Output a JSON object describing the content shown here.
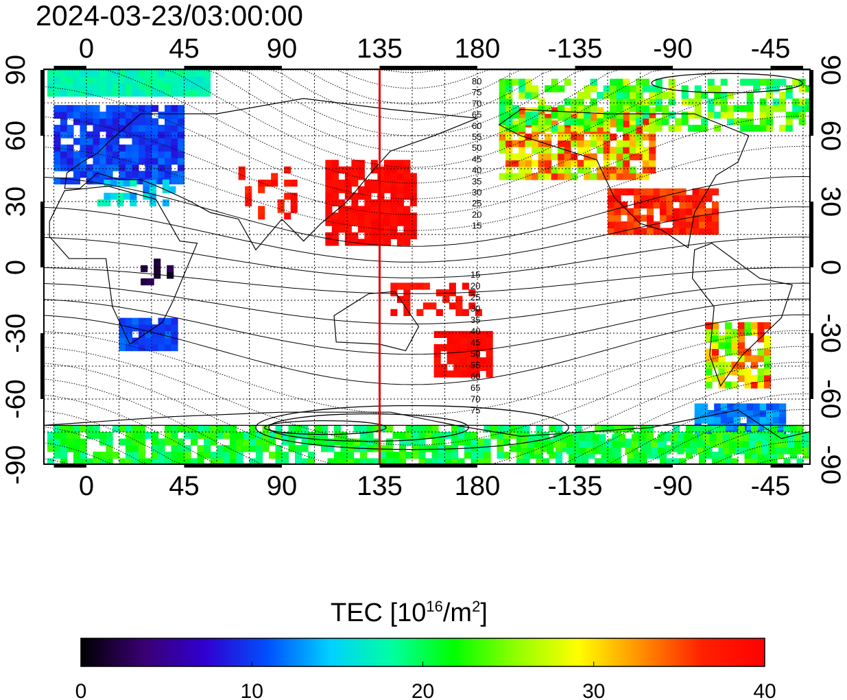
{
  "title": "2024-03-23/03:00:00",
  "x_tick_labels": [
    "0",
    "45",
    "90",
    "135",
    "180",
    "-135",
    "-90",
    "-45"
  ],
  "y_tick_labels_left": [
    "90",
    "60",
    "30",
    "0",
    "-30",
    "-60",
    "-90"
  ],
  "y_tick_labels_right": [
    "90",
    "60",
    "30",
    "0",
    "-30",
    "-60",
    "-90"
  ],
  "contour_labels_north": [
    "80",
    "75",
    "70",
    "65",
    "60",
    "55",
    "50",
    "45",
    "40",
    "35",
    "30",
    "25",
    "20",
    "15"
  ],
  "contour_labels_south": [
    "15",
    "20",
    "25",
    "30",
    "35",
    "40",
    "45",
    "50",
    "55",
    "60",
    "65",
    "70",
    "75"
  ],
  "marker_longitude": 135,
  "marker_color": "#e00000",
  "colorbar": {
    "title_main": "TEC  [10",
    "title_sup1": "16",
    "title_mid": "/m",
    "title_sup2": "2",
    "title_end": "]",
    "min": 0,
    "max": 40,
    "tick_labels": [
      "0",
      "10",
      "20",
      "30",
      "40"
    ],
    "colors": [
      "#000000",
      "#3a0070",
      "#3000d0",
      "#0050ff",
      "#00d0ff",
      "#00ffa0",
      "#00ff00",
      "#90ff00",
      "#ffff00",
      "#ff9000",
      "#ff2000",
      "#ff0000"
    ]
  }
}
